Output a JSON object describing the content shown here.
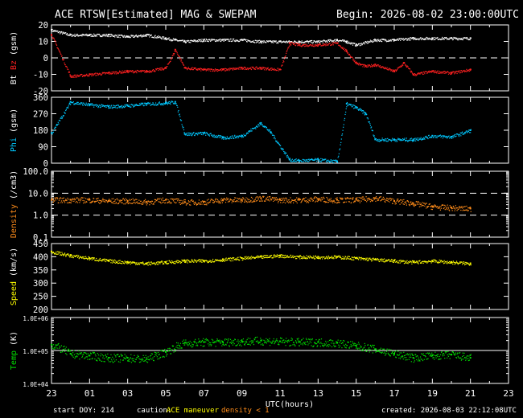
{
  "header": {
    "title": "ACE RTSW[Estimated] MAG & SWEPAM",
    "begin": "Begin: 2026-08-02 23:00:00UTC"
  },
  "footer": {
    "start_doy": "start DOY: 214",
    "caution_label": "caution:",
    "maneuver_label": "ACE maneuver",
    "density_note": "density < 1",
    "created": "created: 2026-08-03 22:12:08UTC"
  },
  "colors": {
    "background": "#000000",
    "axes": "#ffffff",
    "bt": "#ffffff",
    "bz": "#ff2020",
    "phi": "#00c8ff",
    "density": "#ff8c1a",
    "speed": "#ffff00",
    "temp": "#00e000",
    "maneuver": "#ffff00",
    "density_note": "#ff8c1a"
  },
  "chart_data": {
    "type": "scatter",
    "x_axis": {
      "label": "UTC(hours)",
      "tick_labels": [
        "23",
        "01",
        "03",
        "05",
        "07",
        "09",
        "11",
        "13",
        "15",
        "17",
        "19",
        "21",
        "23"
      ],
      "range_hours": [
        0,
        24
      ]
    },
    "panels": [
      {
        "key": "mag",
        "ylabel_parts": [
          "Bt",
          "Bz",
          "(gsm)"
        ],
        "scale": "linear",
        "ylim": [
          -20,
          20
        ],
        "ticks": [
          "-20",
          "-10",
          "0",
          "10",
          "20"
        ],
        "reference_lines": [
          0
        ],
        "series": [
          {
            "name": "Bt",
            "color_key": "bt",
            "x": [
              0.0,
              1.0,
              2.0,
              3.0,
              4.0,
              5.0,
              6.0,
              6.5,
              7.0,
              8.0,
              9.0,
              10.0,
              11.0,
              12.0,
              13.0,
              14.0,
              15.0,
              15.5,
              16.0,
              17.0,
              18.0,
              19.0,
              20.0,
              21.0,
              22.0
            ],
            "y": [
              17,
              14,
              14,
              14,
              13,
              14,
              12,
              11,
              10,
              11,
              11,
              11,
              10,
              10,
              10,
              10,
              11,
              10,
              8,
              11,
              11,
              12,
              12,
              12,
              12
            ]
          },
          {
            "name": "Bz",
            "color_key": "bz",
            "x": [
              0.0,
              1.0,
              2.0,
              3.0,
              4.0,
              5.0,
              6.0,
              6.5,
              7.0,
              8.0,
              9.0,
              10.0,
              11.0,
              12.0,
              12.5,
              13.0,
              14.0,
              15.0,
              15.5,
              16.0,
              16.5,
              17.0,
              18.0,
              18.5,
              19.0,
              20.0,
              21.0,
              22.0
            ],
            "y": [
              14,
              -11,
              -10,
              -9,
              -8,
              -8,
              -6,
              5,
              -6,
              -7,
              -7,
              -6,
              -6,
              -7,
              9,
              8,
              8,
              9,
              4,
              -3,
              -5,
              -4,
              -8,
              -3,
              -10,
              -8,
              -9,
              -7
            ]
          }
        ]
      },
      {
        "key": "phi",
        "ylabel_parts": [
          "Phi",
          "(gsm)"
        ],
        "scale": "linear",
        "ylim": [
          0,
          360
        ],
        "ticks": [
          "0",
          "90",
          "180",
          "270",
          "360"
        ],
        "reference_lines": [],
        "series": [
          {
            "name": "Phi",
            "color_key": "phi",
            "x": [
              0.0,
              1.0,
              2.0,
              3.0,
              4.0,
              5.0,
              6.0,
              6.5,
              7.0,
              8.0,
              9.0,
              10.0,
              11.0,
              11.5,
              12.5,
              13.0,
              14.0,
              15.0,
              15.5,
              16.0,
              16.5,
              17.0,
              18.0,
              19.0,
              20.0,
              21.0,
              22.0
            ],
            "y": [
              165,
              335,
              320,
              310,
              315,
              325,
              330,
              335,
              160,
              165,
              140,
              150,
              220,
              170,
              20,
              15,
              20,
              10,
              325,
              305,
              270,
              130,
              130,
              130,
              150,
              145,
              180
            ]
          }
        ]
      },
      {
        "key": "density",
        "ylabel_parts": [
          "Density",
          "(/cm3)"
        ],
        "scale": "log",
        "ylim": [
          0.1,
          100
        ],
        "ticks": [
          "0.1",
          "1.0",
          "10.0",
          "100.0"
        ],
        "reference_lines": [
          1,
          10
        ],
        "series": [
          {
            "name": "Density",
            "color_key": "density",
            "x": [
              0.0,
              1.0,
              2.0,
              3.0,
              4.0,
              5.0,
              6.0,
              7.0,
              8.0,
              9.0,
              10.0,
              11.0,
              12.0,
              13.0,
              14.0,
              15.0,
              16.0,
              17.0,
              18.0,
              19.0,
              20.0,
              21.0,
              22.0
            ],
            "y": [
              5,
              5,
              5,
              4.5,
              4.5,
              4,
              5,
              4,
              4,
              5,
              5,
              6,
              5,
              5,
              5.5,
              5,
              5,
              6,
              4.5,
              3.5,
              2.5,
              2.2,
              2
            ]
          }
        ]
      },
      {
        "key": "speed",
        "ylabel_parts": [
          "Speed",
          "(km/s)"
        ],
        "scale": "linear",
        "ylim": [
          200,
          450
        ],
        "ticks": [
          "200",
          "250",
          "300",
          "350",
          "400",
          "450"
        ],
        "reference_lines": [],
        "series": [
          {
            "name": "Speed",
            "color_key": "speed",
            "x": [
              0.0,
              1.0,
              2.0,
              3.0,
              4.0,
              5.0,
              6.0,
              7.0,
              8.0,
              9.0,
              10.0,
              11.0,
              12.0,
              13.0,
              14.0,
              15.0,
              16.0,
              17.0,
              18.0,
              19.0,
              20.0,
              21.0,
              22.0
            ],
            "y": [
              420,
              405,
              395,
              385,
              380,
              375,
              380,
              385,
              385,
              390,
              395,
              400,
              405,
              400,
              400,
              400,
              395,
              390,
              385,
              380,
              385,
              380,
              375
            ]
          }
        ]
      },
      {
        "key": "temp",
        "ylabel_parts": [
          "Temp",
          "(K)"
        ],
        "scale": "log",
        "ylim": [
          10000,
          1000000
        ],
        "ticks": [
          "1.0E+04",
          "1.0E+05",
          "1.0E+06"
        ],
        "reference_lines": [
          100000
        ],
        "series": [
          {
            "name": "Temp",
            "color_key": "temp",
            "x": [
              0.0,
              1.0,
              2.0,
              3.0,
              4.0,
              5.0,
              6.0,
              7.0,
              8.0,
              9.0,
              10.0,
              11.0,
              12.0,
              13.0,
              14.0,
              15.0,
              16.0,
              17.0,
              18.0,
              19.0,
              20.0,
              21.0,
              22.0
            ],
            "y": [
              150000,
              80000,
              70000,
              60000,
              60000,
              55000,
              90000,
              170000,
              180000,
              180000,
              190000,
              200000,
              190000,
              180000,
              180000,
              170000,
              140000,
              110000,
              80000,
              60000,
              70000,
              75000,
              60000
            ]
          }
        ]
      }
    ]
  }
}
